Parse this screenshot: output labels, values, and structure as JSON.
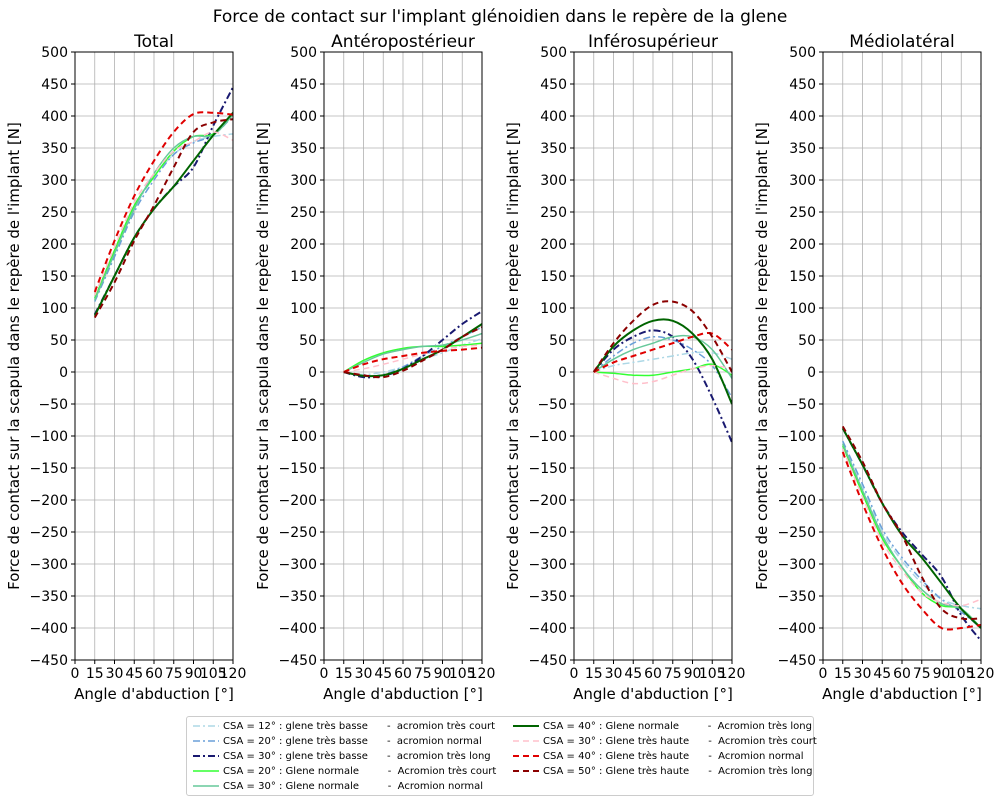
{
  "figure": {
    "title": "Force de contact sur l'implant glénoidien dans le repère de la glene"
  },
  "chart_data": [
    {
      "type": "line",
      "title": "Total",
      "xlabel": "Angle d'abduction [°]",
      "ylabel": "Force de contact sur la scapula dans le repère de l'implant [N]",
      "xlim": [
        0,
        120
      ],
      "ylim": [
        -450,
        500
      ],
      "xticks": [
        0,
        15,
        30,
        45,
        60,
        75,
        90,
        105,
        120
      ],
      "yticks": [
        -450,
        -400,
        -350,
        -300,
        -250,
        -200,
        -150,
        -100,
        -50,
        0,
        50,
        100,
        150,
        200,
        250,
        300,
        350,
        400,
        450,
        500
      ],
      "grid": true,
      "x": [
        15,
        30,
        45,
        60,
        75,
        90,
        105,
        120
      ],
      "series": [
        {
          "name": "CSA = 12° : glene très basse      -  acromion très court",
          "values": [
            115,
            190,
            255,
            305,
            340,
            360,
            368,
            372
          ]
        },
        {
          "name": "CSA = 20° : glene très basse      -  acromion normal",
          "values": [
            110,
            180,
            250,
            300,
            340,
            358,
            370,
            400
          ]
        },
        {
          "name": "CSA = 30° : glene très basse      -  acromion très long",
          "values": [
            90,
            150,
            210,
            255,
            290,
            320,
            385,
            445
          ]
        },
        {
          "name": "CSA = 20° : Glene normale         -  Acromion très court",
          "values": [
            115,
            190,
            260,
            305,
            345,
            368,
            372,
            405
          ]
        },
        {
          "name": "CSA = 30° : Glene normale         -  Acromion normal",
          "values": [
            112,
            185,
            255,
            310,
            350,
            368,
            370,
            402
          ]
        },
        {
          "name": "CSA = 40° : Glene normale         -  Acromion très long",
          "values": [
            88,
            150,
            210,
            255,
            290,
            330,
            370,
            405
          ]
        },
        {
          "name": "CSA = 30° : Glene très haute      -  Acromion très court",
          "values": [
            120,
            195,
            265,
            310,
            345,
            360,
            375,
            362
          ]
        },
        {
          "name": "CSA = 40° : Glene très haute      -  Acromion normal",
          "values": [
            125,
            205,
            275,
            330,
            375,
            403,
            405,
            402
          ]
        },
        {
          "name": "CSA = 50° : Glene très haute      -  Acromion très long",
          "values": [
            85,
            140,
            205,
            260,
            320,
            375,
            390,
            395
          ]
        }
      ]
    },
    {
      "type": "line",
      "title": "Antéropostérieur",
      "xlabel": "Angle d'abduction [°]",
      "ylabel": "Force de contact sur la scapula dans le repère de l'implant [N]",
      "xlim": [
        0,
        120
      ],
      "ylim": [
        -450,
        500
      ],
      "xticks": [
        0,
        15,
        30,
        45,
        60,
        75,
        90,
        105,
        120
      ],
      "yticks": [
        -450,
        -400,
        -350,
        -300,
        -250,
        -200,
        -150,
        -100,
        -50,
        0,
        50,
        100,
        150,
        200,
        250,
        300,
        350,
        400,
        450,
        500
      ],
      "grid": true,
      "x": [
        15,
        30,
        45,
        60,
        75,
        90,
        105,
        120
      ],
      "series": [
        {
          "name": "CSA = 12° : glene très basse      -  acromion très court",
          "values": [
            0,
            -4,
            0,
            8,
            20,
            30,
            42,
            52
          ]
        },
        {
          "name": "CSA = 20° : glene très basse      -  acromion normal",
          "values": [
            0,
            -6,
            -4,
            8,
            25,
            40,
            55,
            70
          ]
        },
        {
          "name": "CSA = 30° : glene très basse      -  acromion très long",
          "values": [
            0,
            -8,
            -6,
            5,
            25,
            50,
            75,
            95
          ]
        },
        {
          "name": "CSA = 20° : Glene normale         -  Acromion très court",
          "values": [
            0,
            18,
            30,
            37,
            40,
            40,
            42,
            45
          ]
        },
        {
          "name": "CSA = 30° : Glene normale         -  Acromion normal",
          "values": [
            0,
            15,
            28,
            35,
            40,
            42,
            50,
            60
          ]
        },
        {
          "name": "CSA = 40° : Glene normale         -  Acromion très long",
          "values": [
            0,
            -6,
            -5,
            5,
            20,
            35,
            55,
            75
          ]
        },
        {
          "name": "CSA = 30° : Glene très haute      -  Acromion très court",
          "values": [
            0,
            5,
            12,
            20,
            28,
            35,
            40,
            42
          ]
        },
        {
          "name": "CSA = 40° : Glene très haute      -  Acromion normal",
          "values": [
            0,
            12,
            20,
            25,
            30,
            33,
            35,
            38
          ]
        },
        {
          "name": "CSA = 50° : Glene très haute      -  Acromion très long",
          "values": [
            0,
            -5,
            -8,
            2,
            18,
            35,
            55,
            70
          ]
        }
      ]
    },
    {
      "type": "line",
      "title": "Inférosupérieur",
      "xlabel": "Angle d'abduction [°]",
      "ylabel": "Force de contact sur la scapula dans le repère de l'implant [N]",
      "xlim": [
        0,
        120
      ],
      "ylim": [
        -450,
        500
      ],
      "xticks": [
        0,
        15,
        30,
        45,
        60,
        75,
        90,
        105,
        120
      ],
      "yticks": [
        -450,
        -400,
        -350,
        -300,
        -250,
        -200,
        -150,
        -100,
        -50,
        0,
        50,
        100,
        150,
        200,
        250,
        300,
        350,
        400,
        450,
        500
      ],
      "grid": true,
      "x": [
        15,
        30,
        45,
        60,
        75,
        90,
        105,
        120
      ],
      "series": [
        {
          "name": "CSA = 12° : glene très basse      -  acromion très court",
          "values": [
            0,
            10,
            15,
            20,
            25,
            30,
            30,
            20
          ]
        },
        {
          "name": "CSA = 20° : glene très basse      -  acromion normal",
          "values": [
            0,
            25,
            45,
            55,
            50,
            35,
            10,
            -40
          ]
        },
        {
          "name": "CSA = 30° : glene très basse      -  acromion très long",
          "values": [
            0,
            35,
            55,
            65,
            55,
            20,
            -40,
            -110
          ]
        },
        {
          "name": "CSA = 20° : Glene normale         -  Acromion très court",
          "values": [
            0,
            -2,
            -5,
            -5,
            0,
            5,
            12,
            -5
          ]
        },
        {
          "name": "CSA = 30° : Glene normale         -  Acromion normal",
          "values": [
            0,
            20,
            35,
            45,
            55,
            55,
            35,
            -10
          ]
        },
        {
          "name": "CSA = 40° : Glene normale         -  Acromion très long",
          "values": [
            0,
            40,
            65,
            80,
            80,
            60,
            20,
            -50
          ]
        },
        {
          "name": "CSA = 30° : Glene très haute      -  Acromion très court",
          "values": [
            0,
            -10,
            -18,
            -15,
            -5,
            5,
            10,
            5
          ]
        },
        {
          "name": "CSA = 40° : Glene très haute      -  Acromion normal",
          "values": [
            0,
            15,
            25,
            35,
            45,
            55,
            60,
            35
          ]
        },
        {
          "name": "CSA = 50° : Glene très haute      -  Acromion très long",
          "values": [
            0,
            45,
            80,
            105,
            110,
            95,
            55,
            0
          ]
        }
      ]
    },
    {
      "type": "line",
      "title": "Médiolatéral",
      "xlabel": "Angle d'abduction [°]",
      "ylabel": "Force de contact sur la scapula dans le repère de l'implant [N]",
      "xlim": [
        0,
        120
      ],
      "ylim": [
        -450,
        500
      ],
      "xticks": [
        0,
        15,
        30,
        45,
        60,
        75,
        90,
        105,
        120
      ],
      "yticks": [
        -450,
        -400,
        -350,
        -300,
        -250,
        -200,
        -150,
        -100,
        -50,
        0,
        50,
        100,
        150,
        200,
        250,
        300,
        350,
        400,
        450,
        500
      ],
      "grid": true,
      "x": [
        15,
        30,
        45,
        60,
        75,
        90,
        105,
        120
      ],
      "series": [
        {
          "name": "CSA = 12° : glene très basse      -  acromion très court",
          "values": [
            -110,
            -180,
            -250,
            -295,
            -330,
            -355,
            -365,
            -370
          ]
        },
        {
          "name": "CSA = 20° : glene très basse      -  acromion normal",
          "values": [
            -108,
            -175,
            -245,
            -290,
            -325,
            -355,
            -375,
            -400
          ]
        },
        {
          "name": "CSA = 30° : glene très basse      -  acromion très long",
          "values": [
            -88,
            -145,
            -205,
            -250,
            -285,
            -320,
            -380,
            -420
          ]
        },
        {
          "name": "CSA = 20° : Glene normale         -  Acromion très court",
          "values": [
            -115,
            -190,
            -260,
            -305,
            -345,
            -365,
            -370,
            -400
          ]
        },
        {
          "name": "CSA = 30° : Glene normale         -  Acromion normal",
          "values": [
            -112,
            -185,
            -255,
            -305,
            -340,
            -362,
            -370,
            -400
          ]
        },
        {
          "name": "CSA = 40° : Glene normale         -  Acromion très long",
          "values": [
            -88,
            -145,
            -205,
            -255,
            -290,
            -330,
            -370,
            -400
          ]
        },
        {
          "name": "CSA = 30° : Glene très haute      -  Acromion très court",
          "values": [
            -120,
            -195,
            -265,
            -310,
            -345,
            -360,
            -365,
            -355
          ]
        },
        {
          "name": "CSA = 40° : Glene très haute      -  Acromion normal",
          "values": [
            -125,
            -205,
            -275,
            -330,
            -370,
            -400,
            -400,
            -395
          ]
        },
        {
          "name": "CSA = 50° : Glene très haute      -  Acromion très long",
          "values": [
            -85,
            -140,
            -205,
            -255,
            -320,
            -370,
            -385,
            -385
          ]
        }
      ]
    }
  ],
  "series_styles": [
    {
      "color": "#add8e6",
      "dash": "7,3,2,3",
      "width": 1.5
    },
    {
      "color": "#6a9fd8",
      "dash": "7,3,2,3",
      "width": 1.5
    },
    {
      "color": "#191970",
      "dash": "7,3,2,3",
      "width": 2
    },
    {
      "color": "#32ff32",
      "dash": "",
      "width": 1.5
    },
    {
      "color": "#66c89a",
      "dash": "",
      "width": 1.5
    },
    {
      "color": "#006400",
      "dash": "",
      "width": 2
    },
    {
      "color": "#ffc0cb",
      "dash": "6,4",
      "width": 1.5
    },
    {
      "color": "#e00000",
      "dash": "6,4",
      "width": 2
    },
    {
      "color": "#8b0000",
      "dash": "6,4",
      "width": 2
    }
  ]
}
